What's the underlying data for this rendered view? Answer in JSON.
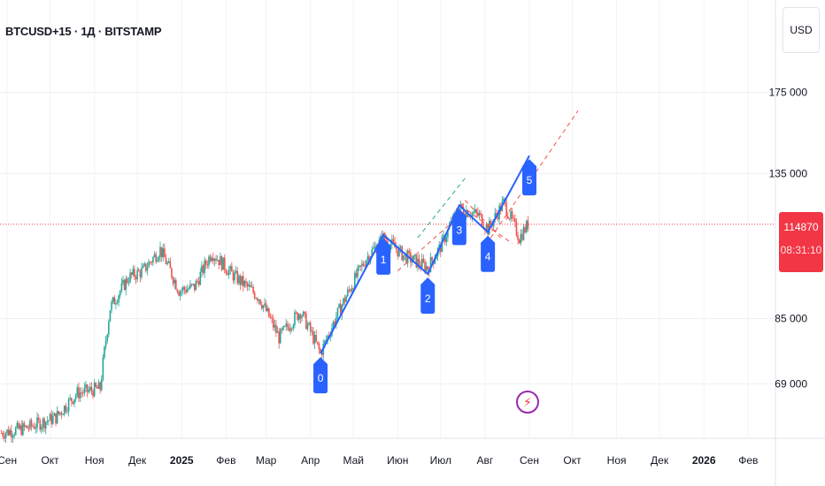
{
  "header": {
    "title": "BTCUSD+15 · 1Д · BITSTAMP"
  },
  "currency_button": {
    "label": "USD"
  },
  "price_badge": {
    "value": "114870",
    "countdown": "08:31:10"
  },
  "event_icon": "lightning-icon",
  "colors": {
    "up": "#26a69a",
    "down": "#ef5350",
    "wave": "#2962ff",
    "badge": "#f23645",
    "target_red": "#ef5350",
    "target_green": "#26a69a"
  },
  "chart_data": {
    "type": "candlestick",
    "log_scale": true,
    "y_ticks": [
      {
        "value": 175000,
        "label": "175 000"
      },
      {
        "value": 135000,
        "label": "135 000"
      },
      {
        "value": 85000,
        "label": "85 000"
      },
      {
        "value": 69000,
        "label": "69 000"
      }
    ],
    "x_ticks": [
      {
        "date": "2024-09-01",
        "label": "Сен",
        "bold": false
      },
      {
        "date": "2024-10-01",
        "label": "Окт",
        "bold": false
      },
      {
        "date": "2024-11-01",
        "label": "Ноя",
        "bold": false
      },
      {
        "date": "2024-12-01",
        "label": "Дек",
        "bold": false
      },
      {
        "date": "2025-01-01",
        "label": "2025",
        "bold": true
      },
      {
        "date": "2025-02-01",
        "label": "Фев",
        "bold": false
      },
      {
        "date": "2025-03-01",
        "label": "Мар",
        "bold": false
      },
      {
        "date": "2025-04-01",
        "label": "Апр",
        "bold": false
      },
      {
        "date": "2025-05-01",
        "label": "Май",
        "bold": false
      },
      {
        "date": "2025-06-01",
        "label": "Июн",
        "bold": false
      },
      {
        "date": "2025-07-01",
        "label": "Июл",
        "bold": false
      },
      {
        "date": "2025-08-01",
        "label": "Авг",
        "bold": false
      },
      {
        "date": "2025-09-01",
        "label": "Сен",
        "bold": false
      },
      {
        "date": "2025-10-01",
        "label": "Окт",
        "bold": false
      },
      {
        "date": "2025-11-01",
        "label": "Ноя",
        "bold": false
      },
      {
        "date": "2025-12-01",
        "label": "Дек",
        "bold": false
      },
      {
        "date": "2026-01-01",
        "label": "2026",
        "bold": true
      },
      {
        "date": "2026-02-01",
        "label": "Фев",
        "bold": false
      }
    ],
    "x_range": [
      "2024-08-27",
      "2026-02-20"
    ],
    "y_range": [
      58000,
      235000
    ],
    "last_price": 114870,
    "price_path": [
      {
        "date": "2024-08-28",
        "price": 59000
      },
      {
        "date": "2024-09-15",
        "price": 60000
      },
      {
        "date": "2024-10-05",
        "price": 62000
      },
      {
        "date": "2024-10-20",
        "price": 67000
      },
      {
        "date": "2024-11-05",
        "price": 68000
      },
      {
        "date": "2024-11-12",
        "price": 88000
      },
      {
        "date": "2024-11-25",
        "price": 97000
      },
      {
        "date": "2024-12-05",
        "price": 99000
      },
      {
        "date": "2024-12-17",
        "price": 106000
      },
      {
        "date": "2024-12-30",
        "price": 93000
      },
      {
        "date": "2025-01-10",
        "price": 94000
      },
      {
        "date": "2025-01-22",
        "price": 105000
      },
      {
        "date": "2025-02-05",
        "price": 98000
      },
      {
        "date": "2025-02-24",
        "price": 91000
      },
      {
        "date": "2025-03-10",
        "price": 80000
      },
      {
        "date": "2025-03-25",
        "price": 87000
      },
      {
        "date": "2025-04-08",
        "price": 76000
      },
      {
        "date": "2025-04-22",
        "price": 88000
      },
      {
        "date": "2025-05-10",
        "price": 103000
      },
      {
        "date": "2025-05-22",
        "price": 110000
      },
      {
        "date": "2025-06-05",
        "price": 104000
      },
      {
        "date": "2025-06-22",
        "price": 100000
      },
      {
        "date": "2025-07-01",
        "price": 107000
      },
      {
        "date": "2025-07-14",
        "price": 121000
      },
      {
        "date": "2025-07-28",
        "price": 118000
      },
      {
        "date": "2025-08-03",
        "price": 113000
      },
      {
        "date": "2025-08-14",
        "price": 123000
      },
      {
        "date": "2025-08-25",
        "price": 110000
      },
      {
        "date": "2025-08-31",
        "price": 114870
      }
    ],
    "elliott_waves": [
      {
        "label": "0",
        "date": "2025-04-08",
        "price": 76000,
        "pos": "below"
      },
      {
        "label": "1",
        "date": "2025-05-22",
        "price": 111000,
        "pos": "below"
      },
      {
        "label": "2",
        "date": "2025-06-22",
        "price": 98000,
        "pos": "below"
      },
      {
        "label": "3",
        "date": "2025-07-14",
        "price": 122000,
        "pos": "below"
      },
      {
        "label": "4",
        "date": "2025-08-03",
        "price": 112000,
        "pos": "below"
      },
      {
        "label": "5",
        "date": "2025-09-01",
        "price": 143000,
        "pos": "below"
      }
    ],
    "target_channel": [
      {
        "color": "red",
        "from": {
          "date": "2025-06-01",
          "price": 99000
        },
        "to": {
          "date": "2025-07-14",
          "price": 118000
        }
      },
      {
        "color": "green",
        "from": {
          "date": "2025-06-15",
          "price": 110000
        },
        "to": {
          "date": "2025-07-18",
          "price": 133000
        }
      },
      {
        "color": "red",
        "from": {
          "date": "2025-07-15",
          "price": 122000
        },
        "to": {
          "date": "2025-08-20",
          "price": 108000
        }
      },
      {
        "color": "red",
        "from": {
          "date": "2025-08-05",
          "price": 110000
        },
        "to": {
          "date": "2025-10-05",
          "price": 165000
        }
      },
      {
        "color": "red",
        "from": {
          "date": "2025-07-18",
          "price": 124000
        },
        "to": {
          "date": "2025-08-12",
          "price": 110000
        }
      }
    ]
  }
}
